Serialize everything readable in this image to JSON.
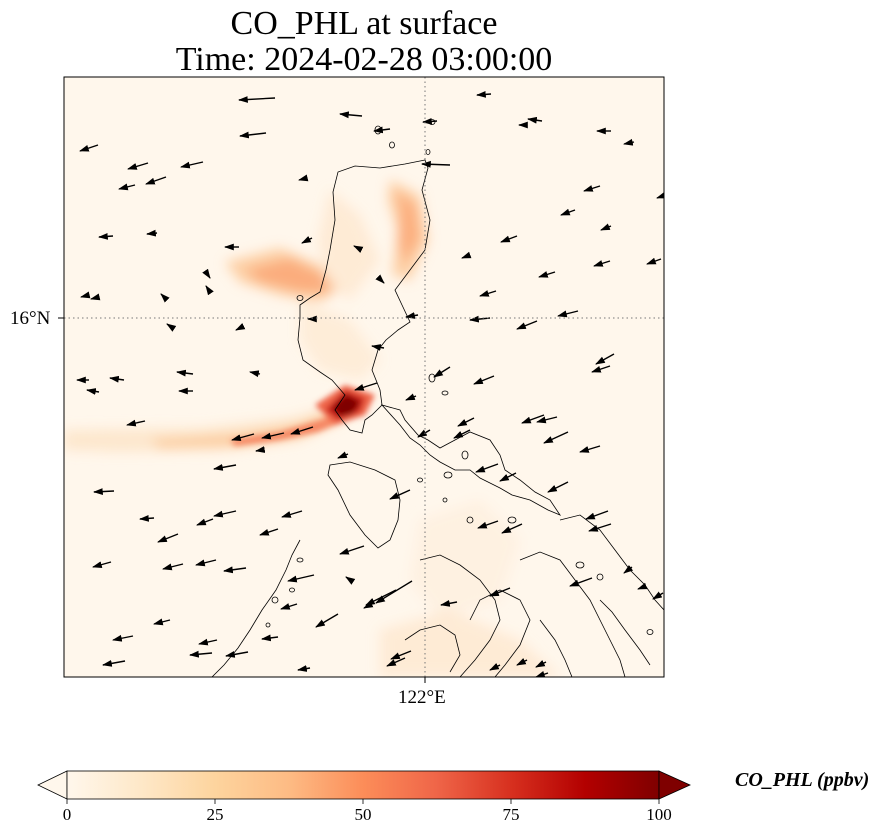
{
  "title": {
    "line1": "CO_PHL at surface",
    "line2": "Time: 2024-02-28 03:00:00"
  },
  "axes": {
    "lat_tick": "16°N",
    "lon_tick": "122°E",
    "gridlines": "dotted"
  },
  "colorbar": {
    "label": "CO_PHL (ppbv)",
    "colormap": "OrRd",
    "min": 0,
    "max": 100,
    "ticks": [
      "0",
      "25",
      "50",
      "75",
      "100"
    ],
    "extend": "both",
    "colors": [
      "#fff7ec",
      "#fee8c8",
      "#fdd49e",
      "#fdbb84",
      "#fc8d59",
      "#ef6548",
      "#d7301f",
      "#b30000",
      "#7f0000"
    ]
  },
  "field": {
    "variable": "CO_PHL",
    "units": "ppbv",
    "level": "surface",
    "max_value": 100
  },
  "vectors": {
    "kind": "wind arrows",
    "dominant_direction": "east-northeasterly (blowing toward west-southwest)"
  }
}
